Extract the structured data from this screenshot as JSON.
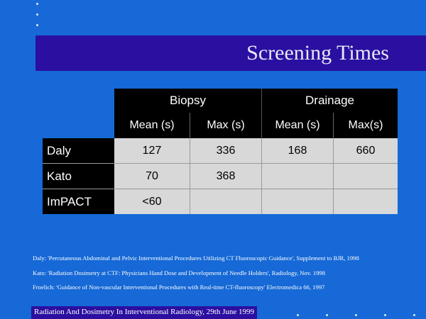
{
  "slide": {
    "title": "Screening Times",
    "footer": "Radiation And Dosimetry In Interventional Radiology, 29th June 1999",
    "accent_bar_color": "#2b0fa0",
    "background_color": "#1669d6"
  },
  "table": {
    "group_headers": [
      "Biopsy",
      "Drainage"
    ],
    "sub_headers": [
      "Mean (s)",
      "Max (s)",
      "Mean (s)",
      "Max(s)"
    ],
    "rows": [
      {
        "name": "Daly",
        "values": [
          "127",
          "336",
          "168",
          "660"
        ]
      },
      {
        "name": "Kato",
        "values": [
          "70",
          "368",
          "",
          ""
        ]
      },
      {
        "name": "ImPACT",
        "values": [
          "<60",
          "",
          "",
          ""
        ]
      }
    ]
  },
  "references": [
    "Daly: 'Percutaneous Abdominal and Pelvic Interventional Procedures Utilizing CT Fluoroscopic Guidance', Supplement to BJR, 1998",
    "Kato: 'Radiation Dosimetry at CTF: Physicians Hand Dose and Development of Needle Holders', Radiology, Nov. 1998",
    "Froelich: 'Guidance of Non-vascular Interventional Procedures with Real-time CT-fluoroscopy' Electromedica 66, 1997"
  ]
}
